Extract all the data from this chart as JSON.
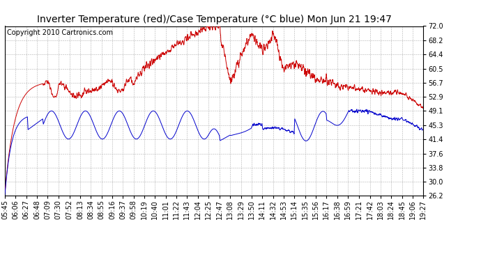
{
  "title": "Inverter Temperature (red)/Case Temperature (°C blue) Mon Jun 21 19:47",
  "copyright": "Copyright 2010 Cartronics.com",
  "background_color": "#ffffff",
  "plot_bg_color": "#ffffff",
  "grid_color": "#b0b0b0",
  "yticks": [
    26.2,
    30.0,
    33.8,
    37.6,
    41.4,
    45.3,
    49.1,
    52.9,
    56.7,
    60.5,
    64.4,
    68.2,
    72.0
  ],
  "ymin": 26.2,
  "ymax": 72.0,
  "xtick_labels": [
    "05:45",
    "06:06",
    "06:27",
    "06:48",
    "07:09",
    "07:30",
    "07:52",
    "08:13",
    "08:34",
    "08:55",
    "09:16",
    "09:37",
    "09:58",
    "10:19",
    "10:40",
    "11:01",
    "11:22",
    "11:43",
    "12:04",
    "12:25",
    "12:47",
    "13:08",
    "13:29",
    "13:50",
    "14:11",
    "14:32",
    "14:53",
    "15:14",
    "15:35",
    "15:56",
    "16:17",
    "16:38",
    "16:59",
    "17:21",
    "17:42",
    "18:03",
    "18:24",
    "18:45",
    "19:06",
    "19:27"
  ],
  "red_line_color": "#cc0000",
  "blue_line_color": "#0000cc",
  "title_fontsize": 10,
  "copyright_fontsize": 7,
  "tick_fontsize": 7
}
